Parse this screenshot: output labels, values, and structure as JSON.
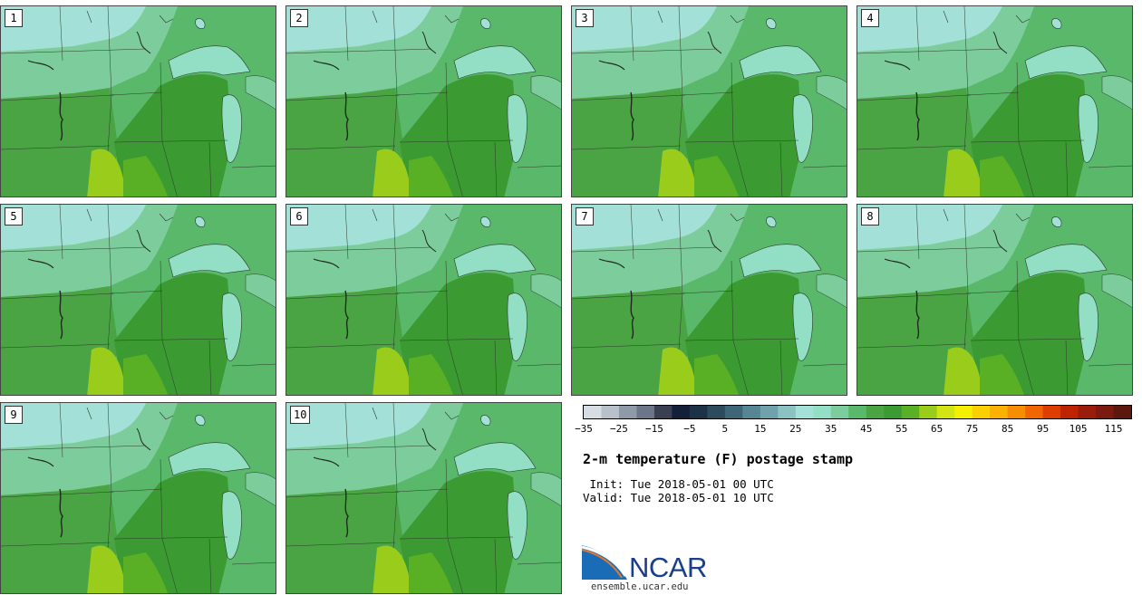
{
  "stamps": [
    {
      "label": "1"
    },
    {
      "label": "2"
    },
    {
      "label": "3"
    },
    {
      "label": "4"
    },
    {
      "label": "5"
    },
    {
      "label": "6"
    },
    {
      "label": "7"
    },
    {
      "label": "8"
    },
    {
      "label": "9"
    },
    {
      "label": "10"
    }
  ],
  "colorbar": {
    "colors": [
      "#d8dde3",
      "#b7c0cb",
      "#8f9aa9",
      "#6c7688",
      "#3a3f52",
      "#13203a",
      "#1c3347",
      "#2c4c5e",
      "#3f6677",
      "#568594",
      "#6fa2ab",
      "#8bc3c2",
      "#a3e0d8",
      "#93dfc5",
      "#7dcd9c",
      "#5ab86a",
      "#4aa444",
      "#3c9a32",
      "#5ab025",
      "#9acc1c",
      "#d2e414",
      "#f4f000",
      "#fcd000",
      "#fab100",
      "#f78d00",
      "#f16600",
      "#df3c00",
      "#bf2400",
      "#9a1c0b",
      "#7a1a10",
      "#5d180e"
    ],
    "tick_labels": [
      "−35",
      "−25",
      "−15",
      "−5",
      "5",
      "15",
      "25",
      "35",
      "45",
      "55",
      "65",
      "75",
      "85",
      "95",
      "105",
      "115"
    ]
  },
  "title": "2-m temperature (F) postage stamp",
  "init_line": " Init: Tue 2018-05-01 00 UTC",
  "valid_line": "Valid: Tue 2018-05-01 10 UTC",
  "logo": {
    "wordmark": "NCAR",
    "brand_color": "#1a3f8a",
    "stripe_color": "#e8762b"
  },
  "website": "ensemble.ucar.edu"
}
